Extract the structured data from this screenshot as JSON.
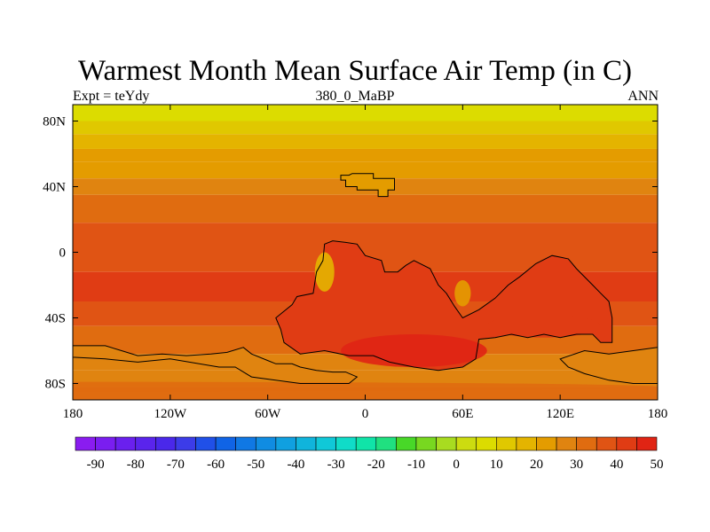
{
  "title": "Warmest Month Mean Surface Air Temp (in C)",
  "subtitle_left": "Expt = teYdy",
  "subtitle_center": "380_0_MaBP",
  "subtitle_right": "ANN",
  "axes": {
    "lon_ticks": [
      {
        "value": -180,
        "label": "180"
      },
      {
        "value": -120,
        "label": "120W"
      },
      {
        "value": -60,
        "label": "60W"
      },
      {
        "value": 0,
        "label": "0"
      },
      {
        "value": 60,
        "label": "60E"
      },
      {
        "value": 120,
        "label": "120E"
      },
      {
        "value": 180,
        "label": "180"
      }
    ],
    "lat_ticks": [
      {
        "value": 80,
        "label": "80N"
      },
      {
        "value": 40,
        "label": "40N"
      },
      {
        "value": 0,
        "label": "0"
      },
      {
        "value": -40,
        "label": "40S"
      },
      {
        "value": -80,
        "label": "80S"
      }
    ],
    "lon_range": [
      -180,
      180
    ],
    "lat_range": [
      -90,
      90
    ]
  },
  "colorbar": {
    "labels": [
      "-90",
      "-80",
      "-70",
      "-60",
      "-50",
      "-40",
      "-30",
      "-20",
      "-10",
      "0",
      "10",
      "20",
      "30",
      "40",
      "50"
    ],
    "label_values": [
      -90,
      -80,
      -70,
      -60,
      -50,
      -40,
      -30,
      -20,
      -10,
      0,
      10,
      20,
      30,
      40,
      50
    ],
    "min": -95,
    "step": 5,
    "colors": [
      "#8a1cf0",
      "#7a1ef0",
      "#6a20ee",
      "#5a24ec",
      "#4a28ea",
      "#3c3ce8",
      "#2050e8",
      "#1064e6",
      "#1078e4",
      "#108ce2",
      "#10a0e0",
      "#10b4dc",
      "#10c8d8",
      "#10dcc8",
      "#10e4a8",
      "#20e080",
      "#48d828",
      "#78d820",
      "#a8dc20",
      "#ccdc10",
      "#dcdc00",
      "#e0c800",
      "#e4b400",
      "#e49c00",
      "#e08410",
      "#e06c10",
      "#e05414",
      "#e03c14",
      "#e02414"
    ]
  },
  "map": {
    "zonal_bands": [
      {
        "lat": [
          80,
          90
        ],
        "value": 7
      },
      {
        "lat": [
          72,
          80
        ],
        "value": 12
      },
      {
        "lat": [
          63,
          72
        ],
        "value": 17
      },
      {
        "lat": [
          55,
          63
        ],
        "value": 20
      },
      {
        "lat": [
          45,
          55
        ],
        "value": 23
      },
      {
        "lat": [
          35,
          45
        ],
        "value": 27
      },
      {
        "lat": [
          18,
          35
        ],
        "value": 32
      },
      {
        "lat": [
          -12,
          18
        ],
        "value": 36
      },
      {
        "lat": [
          -30,
          -12
        ],
        "value": 40
      },
      {
        "lat": [
          -45,
          -30
        ],
        "value": 36
      },
      {
        "lat": [
          -62,
          -45
        ],
        "value": 31
      },
      {
        "lat": [
          -72,
          -62
        ],
        "value": 25
      },
      {
        "lat": [
          -82,
          -72
        ],
        "value": 29
      },
      {
        "lat": [
          -90,
          -82
        ],
        "value": 32
      }
    ],
    "continents": [
      {
        "name": "north-landmass",
        "value": 24,
        "outline": [
          [
            -15,
            47
          ],
          [
            -10,
            47
          ],
          [
            -8,
            48
          ],
          [
            5,
            48
          ],
          [
            5,
            45
          ],
          [
            18,
            45
          ],
          [
            18,
            38
          ],
          [
            14,
            38
          ],
          [
            14,
            34
          ],
          [
            8,
            34
          ],
          [
            8,
            38
          ],
          [
            -5,
            38
          ],
          [
            -5,
            40
          ],
          [
            -12,
            40
          ],
          [
            -12,
            44
          ],
          [
            -15,
            44
          ]
        ]
      },
      {
        "name": "central-landmass",
        "value": 42,
        "outline": [
          [
            -25,
            5
          ],
          [
            -20,
            7
          ],
          [
            -12,
            6
          ],
          [
            -5,
            5
          ],
          [
            0,
            -2
          ],
          [
            10,
            -5
          ],
          [
            12,
            -12
          ],
          [
            20,
            -12
          ],
          [
            25,
            -8
          ],
          [
            30,
            -5
          ],
          [
            40,
            -10
          ],
          [
            45,
            -20
          ],
          [
            50,
            -25
          ],
          [
            55,
            -33
          ],
          [
            60,
            -40
          ],
          [
            70,
            -35
          ],
          [
            80,
            -28
          ],
          [
            88,
            -20
          ],
          [
            95,
            -15
          ],
          [
            105,
            -7
          ],
          [
            115,
            -2
          ],
          [
            125,
            -4
          ],
          [
            130,
            -10
          ],
          [
            140,
            -20
          ],
          [
            145,
            -25
          ],
          [
            150,
            -30
          ],
          [
            152,
            -40
          ],
          [
            152,
            -55
          ],
          [
            145,
            -55
          ],
          [
            140,
            -50
          ],
          [
            130,
            -50
          ],
          [
            120,
            -52
          ],
          [
            110,
            -50
          ],
          [
            100,
            -52
          ],
          [
            90,
            -50
          ],
          [
            80,
            -52
          ],
          [
            70,
            -53
          ],
          [
            68,
            -65
          ],
          [
            60,
            -70
          ],
          [
            45,
            -72
          ],
          [
            30,
            -70
          ],
          [
            15,
            -67
          ],
          [
            5,
            -63
          ],
          [
            -10,
            -63
          ],
          [
            -25,
            -60
          ],
          [
            -40,
            -62
          ],
          [
            -50,
            -55
          ],
          [
            -52,
            -47
          ],
          [
            -55,
            -40
          ],
          [
            -45,
            -32
          ],
          [
            -42,
            -27
          ],
          [
            -32,
            -25
          ],
          [
            -30,
            -12
          ],
          [
            -26,
            -5
          ]
        ]
      },
      {
        "name": "south-landmass",
        "value": 27,
        "outline": [
          [
            -180,
            -57
          ],
          [
            -160,
            -57
          ],
          [
            -150,
            -60
          ],
          [
            -140,
            -63
          ],
          [
            -125,
            -62
          ],
          [
            -110,
            -63
          ],
          [
            -95,
            -62
          ],
          [
            -85,
            -61
          ],
          [
            -75,
            -58
          ],
          [
            -70,
            -62
          ],
          [
            -60,
            -66
          ],
          [
            -55,
            -68
          ],
          [
            -45,
            -68
          ],
          [
            -40,
            -70
          ],
          [
            -30,
            -72
          ],
          [
            -20,
            -73
          ],
          [
            -12,
            -73
          ],
          [
            -5,
            -76
          ],
          [
            -10,
            -80
          ],
          [
            -40,
            -80
          ],
          [
            -70,
            -76
          ],
          [
            -80,
            -70
          ],
          [
            -90,
            -70
          ],
          [
            -120,
            -65
          ],
          [
            -140,
            -67
          ],
          [
            -160,
            -65
          ],
          [
            -180,
            -64
          ]
        ]
      },
      {
        "name": "east-landmass",
        "value": 27,
        "outline": [
          [
            120,
            -65
          ],
          [
            135,
            -60
          ],
          [
            150,
            -62
          ],
          [
            165,
            -60
          ],
          [
            180,
            -58
          ],
          [
            180,
            -80
          ],
          [
            165,
            -80
          ],
          [
            150,
            -78
          ],
          [
            135,
            -74
          ],
          [
            125,
            -70
          ]
        ]
      }
    ],
    "hotspots": [
      {
        "center": [
          30,
          -60
        ],
        "radius": [
          45,
          10
        ],
        "value": 46
      },
      {
        "center": [
          110,
          -45
        ],
        "radius": [
          35,
          7
        ],
        "value": 44
      },
      {
        "center": [
          -25,
          -12
        ],
        "radius": [
          6,
          12
        ],
        "value": 18
      },
      {
        "center": [
          60,
          -25
        ],
        "radius": [
          5,
          8
        ],
        "value": 20
      },
      {
        "center": [
          -180,
          -82
        ],
        "radius": [
          360,
          3
        ],
        "value": 33
      }
    ],
    "line_color": "#000000"
  }
}
